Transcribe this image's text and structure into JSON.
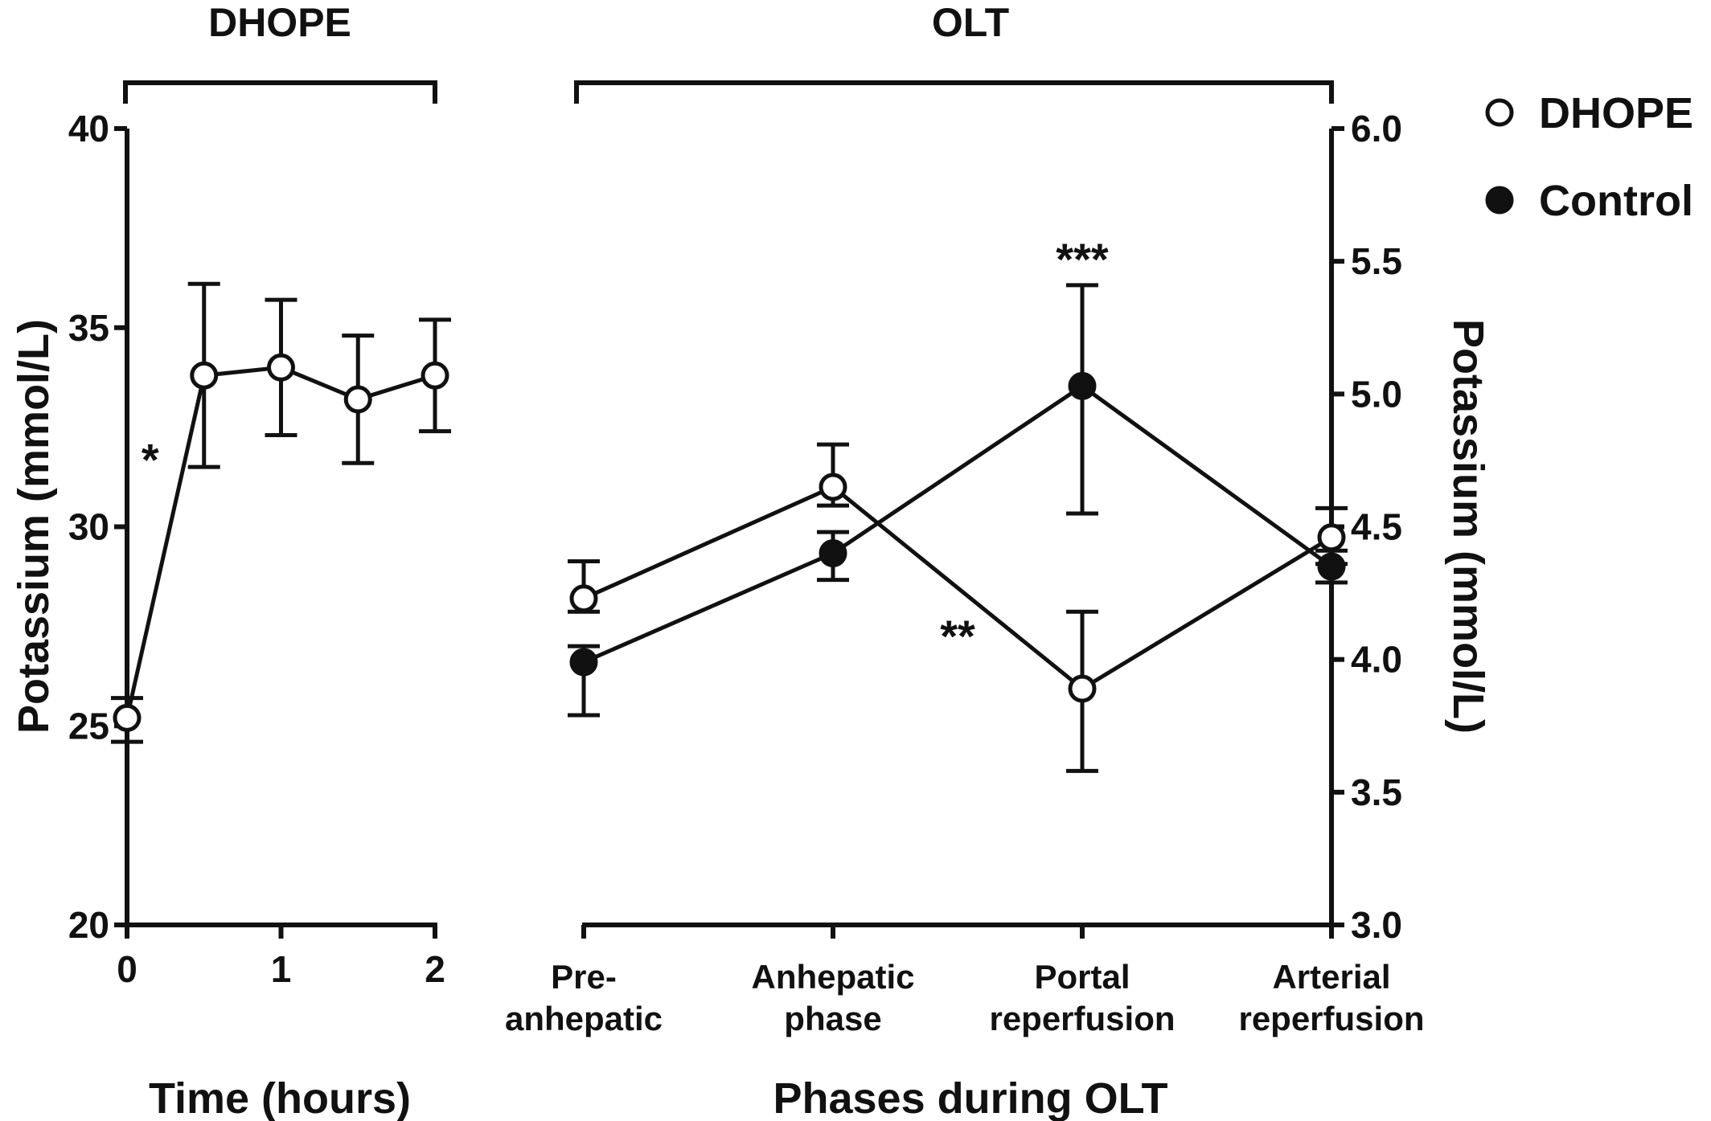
{
  "chart_data": [
    {
      "type": "line",
      "panel_title": "DHOPE",
      "xlabel": "Time (hours)",
      "ylabel": "Potassium (mmol/L)",
      "xlim": [
        0,
        2
      ],
      "ylim": [
        20,
        40
      ],
      "x_ticks": [
        "0",
        "1",
        "2"
      ],
      "y_ticks": [
        "20",
        "25",
        "30",
        "35",
        "40"
      ],
      "series": [
        {
          "name": "DHOPE",
          "marker": "open",
          "x": [
            0,
            0.5,
            1,
            1.5,
            2
          ],
          "y": [
            25.2,
            33.8,
            34.0,
            33.2,
            33.8
          ],
          "err_low": [
            24.6,
            31.5,
            32.3,
            31.6,
            32.4
          ],
          "err_high": [
            25.7,
            36.1,
            35.7,
            34.8,
            35.2
          ]
        }
      ],
      "annotations": [
        {
          "text": "*",
          "x": 0.15,
          "y": 31.7
        }
      ]
    },
    {
      "type": "line",
      "panel_title": "OLT",
      "xlabel": "Phases during OLT",
      "ylabel": "Potassium (mmol/L)",
      "ylim": [
        3.0,
        6.0
      ],
      "y_ticks": [
        "3.0",
        "3.5",
        "4.0",
        "4.5",
        "5.0",
        "5.5",
        "6.0"
      ],
      "categories": [
        [
          "Pre-",
          "anhepatic"
        ],
        [
          "Anhepatic",
          "phase"
        ],
        [
          "Portal",
          "reperfusion"
        ],
        [
          "Arterial",
          "reperfusion"
        ]
      ],
      "series": [
        {
          "name": "DHOPE",
          "marker": "open",
          "values": [
            4.23,
            4.65,
            3.89,
            4.46
          ],
          "err_low": [
            4.18,
            4.58,
            3.58,
            4.36
          ],
          "err_high": [
            4.37,
            4.81,
            4.18,
            4.57
          ]
        },
        {
          "name": "Control",
          "marker": "filled",
          "values": [
            3.99,
            4.4,
            5.03,
            4.35
          ],
          "err_low": [
            3.79,
            4.3,
            4.55,
            4.29
          ],
          "err_high": [
            4.05,
            4.48,
            5.41,
            4.41
          ]
        }
      ],
      "annotations": [
        {
          "text": "***",
          "category": 2,
          "y": 5.51
        },
        {
          "text": "**",
          "category": 1.5,
          "y": 4.09
        }
      ]
    }
  ],
  "legend": [
    {
      "label": "DHOPE",
      "marker": "open"
    },
    {
      "label": "Control",
      "marker": "filled"
    }
  ]
}
